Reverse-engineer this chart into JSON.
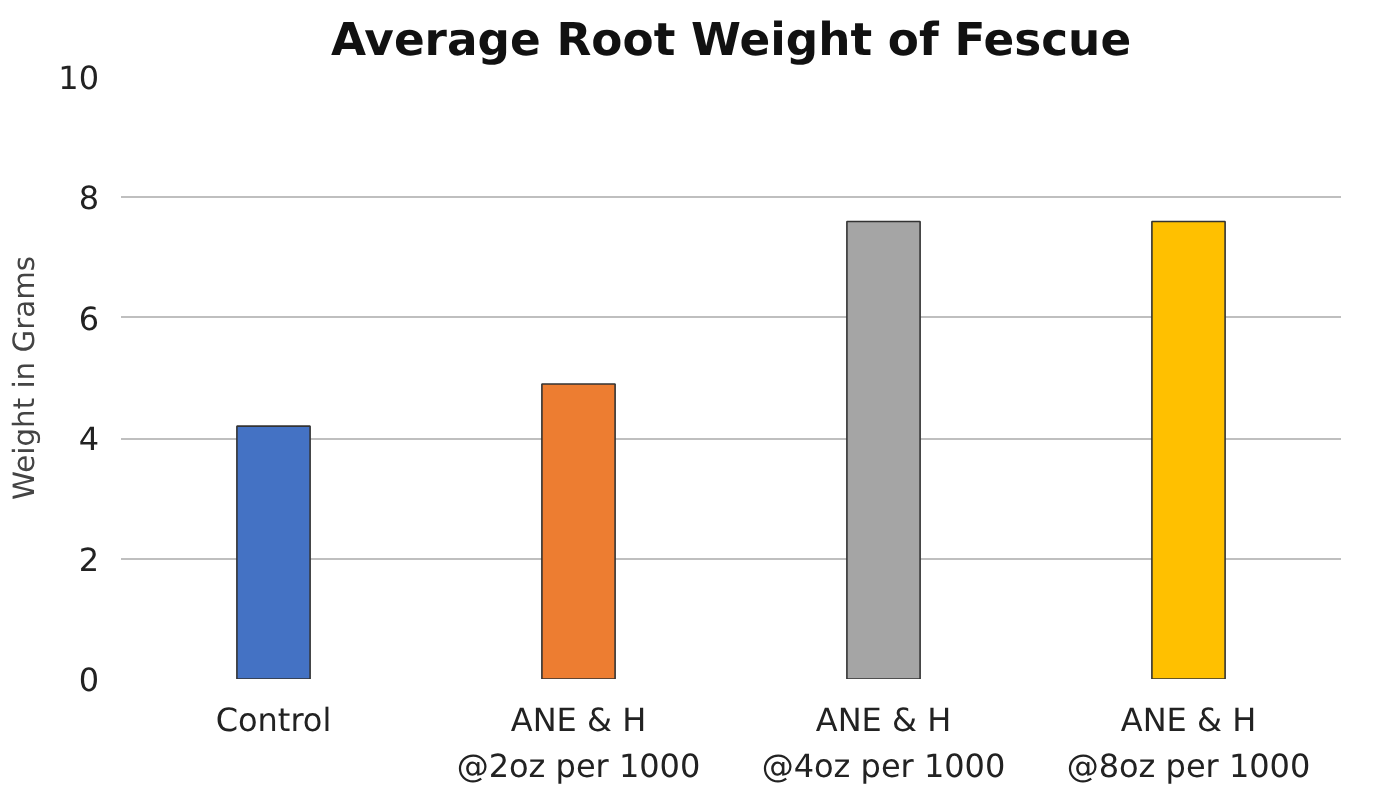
{
  "chart_data": {
    "type": "bar",
    "title": "Average Root Weight of Fescue",
    "ylabel": "Weight in Grams",
    "categories": [
      "Control",
      "ANE & H\n@2oz per 1000",
      "ANE & H\n@4oz per 1000",
      "ANE & H\n@8oz per 1000"
    ],
    "values": [
      4.2,
      4.9,
      7.6,
      7.6
    ],
    "colors": [
      "#4472c4",
      "#ed7d31",
      "#a5a5a5",
      "#ffc000"
    ],
    "ylim": [
      0,
      10
    ],
    "yticks": [
      0,
      2,
      4,
      6,
      8,
      10
    ],
    "grid": "y"
  }
}
